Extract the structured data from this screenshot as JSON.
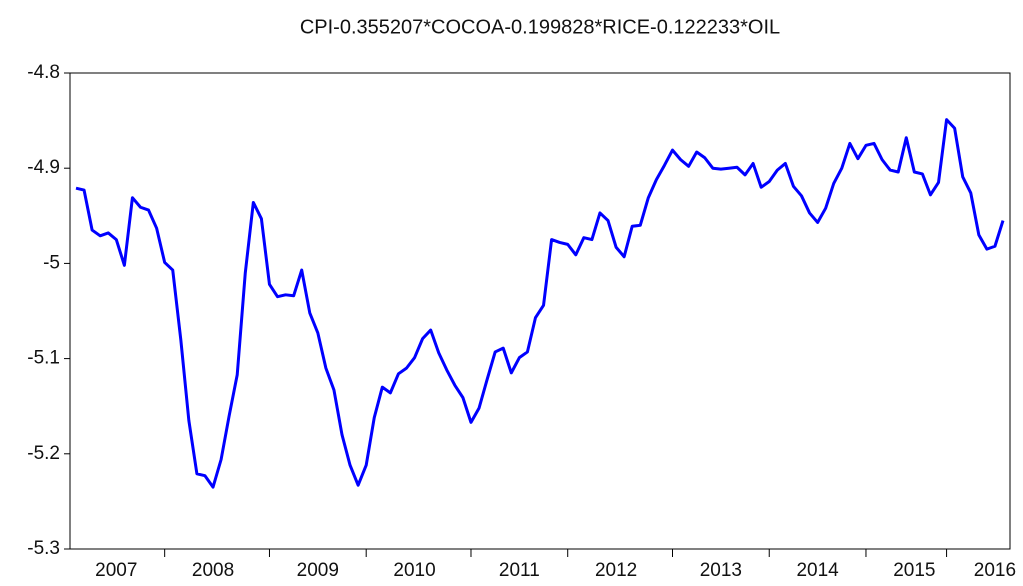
{
  "chart_data": {
    "type": "line",
    "title": "CPI-0.355207*COCOA-0.199828*RICE-0.122233*OIL",
    "color": "#0000ff",
    "ylim": [
      -5.3,
      -4.8
    ],
    "yticks": [
      -5.3,
      -5.2,
      -5.1,
      -5.0,
      -4.9,
      -4.8
    ],
    "categories": [
      null,
      null,
      null,
      null,
      null,
      "2007",
      null,
      null,
      null,
      null,
      null,
      null,
      null,
      null,
      null,
      null,
      null,
      "2008",
      null,
      null,
      null,
      null,
      null,
      null,
      null,
      null,
      null,
      null,
      null,
      null,
      "2009",
      null,
      null,
      null,
      null,
      null,
      null,
      null,
      null,
      null,
      null,
      null,
      "2010",
      null,
      null,
      null,
      null,
      null,
      null,
      null,
      null,
      null,
      null,
      null,
      null,
      "2011",
      null,
      null,
      null,
      null,
      null,
      null,
      null,
      null,
      null,
      null,
      null,
      "2012",
      null,
      null,
      null,
      null,
      null,
      null,
      null,
      null,
      null,
      null,
      null,
      null,
      "2013",
      null,
      null,
      null,
      null,
      null,
      null,
      null,
      null,
      null,
      null,
      null,
      "2014",
      null,
      null,
      null,
      null,
      null,
      null,
      null,
      null,
      null,
      null,
      null,
      "2015",
      null,
      null,
      null,
      null,
      null,
      null,
      null,
      null,
      null,
      "2016",
      null
    ],
    "values": [
      -4.921,
      -4.923,
      -4.965,
      -4.971,
      -4.968,
      -4.975,
      -5.002,
      -4.931,
      -4.941,
      -4.944,
      -4.963,
      -4.999,
      -5.007,
      -5.08,
      -5.165,
      -5.221,
      -5.223,
      -5.235,
      -5.206,
      -5.16,
      -5.117,
      -5.01,
      -4.936,
      -4.953,
      -5.022,
      -5.035,
      -5.033,
      -5.034,
      -5.007,
      -5.052,
      -5.073,
      -5.11,
      -5.133,
      -5.18,
      -5.212,
      -5.233,
      -5.212,
      -5.162,
      -5.13,
      -5.136,
      -5.116,
      -5.11,
      -5.099,
      -5.079,
      -5.07,
      -5.094,
      -5.112,
      -5.128,
      -5.141,
      -5.167,
      -5.152,
      -5.122,
      -5.093,
      -5.089,
      -5.115,
      -5.099,
      -5.093,
      -5.057,
      -5.044,
      -4.975,
      -4.978,
      -4.98,
      -4.991,
      -4.973,
      -4.975,
      -4.947,
      -4.955,
      -4.983,
      -4.993,
      -4.961,
      -4.96,
      -4.931,
      -4.912,
      -4.897,
      -4.881,
      -4.891,
      -4.898,
      -4.883,
      -4.889,
      -4.9,
      -4.901,
      -4.9,
      -4.899,
      -4.907,
      -4.895,
      -4.92,
      -4.914,
      -4.902,
      -4.895,
      -4.919,
      -4.929,
      -4.947,
      -4.957,
      -4.942,
      -4.916,
      -4.9,
      -4.874,
      -4.89,
      -4.876,
      -4.874,
      -4.891,
      -4.902,
      -4.904,
      -4.868,
      -4.904,
      -4.906,
      -4.928,
      -4.915,
      -4.849,
      -4.858,
      -4.909,
      -4.926,
      -4.97,
      -4.985,
      -4.982,
      -4.955
    ]
  }
}
